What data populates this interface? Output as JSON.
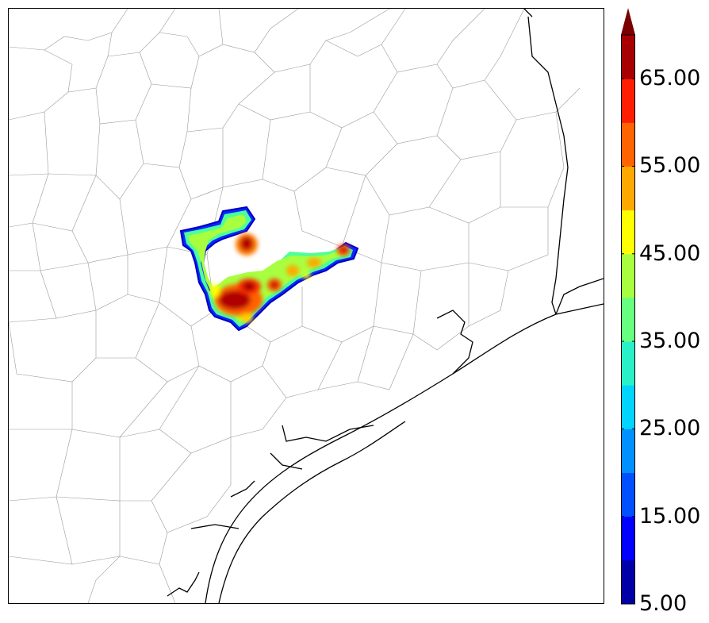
{
  "colorbar": {
    "labels": [
      "5.00",
      "15.00",
      "25.00",
      "35.00",
      "45.00",
      "55.00",
      "65.00"
    ],
    "levels": [
      5,
      10,
      15,
      20,
      25,
      30,
      35,
      40,
      45,
      50,
      55,
      60,
      65,
      70
    ],
    "colors": [
      "#0000a8",
      "#0000ff",
      "#0050ff",
      "#0090ff",
      "#00d4ff",
      "#29f0c8",
      "#66ff80",
      "#a8ff40",
      "#ffff00",
      "#ffa800",
      "#ff6400",
      "#ff1e00",
      "#a80000"
    ],
    "extend_color": "#7a0000"
  },
  "map": {
    "county_line_color": "#9a9a9a",
    "coast_color": "#000000",
    "land_color": "#ffffff"
  }
}
